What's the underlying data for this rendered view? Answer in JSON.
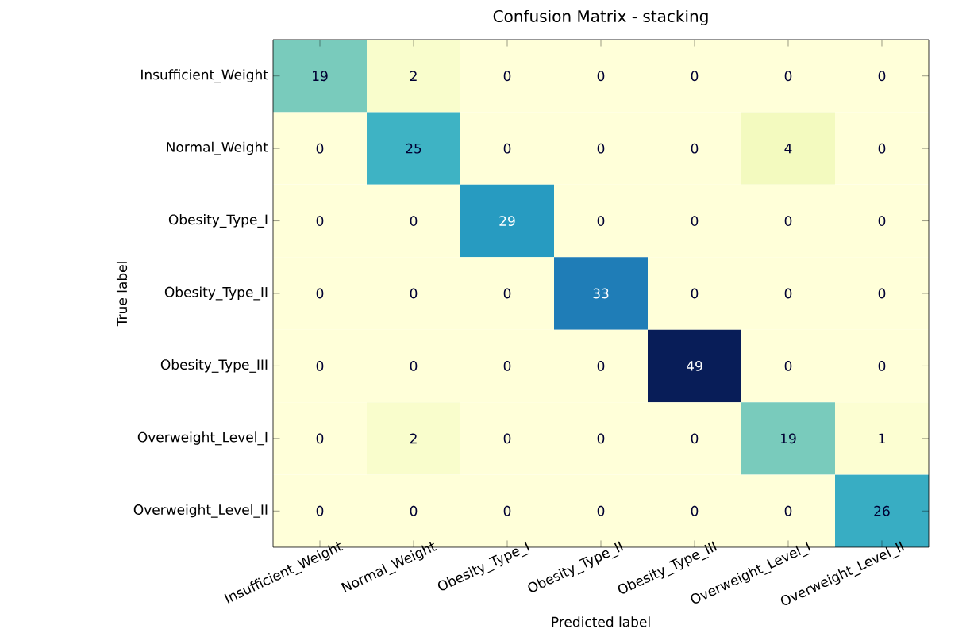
{
  "chart_data": {
    "type": "heatmap",
    "title": "Confusion Matrix - stacking",
    "xlabel": "Predicted label",
    "ylabel": "True label",
    "categories": [
      "Insufficient_Weight",
      "Normal_Weight",
      "Obesity_Type_I",
      "Obesity_Type_II",
      "Obesity_Type_III",
      "Overweight_Level_I",
      "Overweight_Level_II"
    ],
    "y_categories": [
      "Insufficient_Weight",
      "Normal_Weight",
      "Obesity_Type_I",
      "Obesity_Type_II",
      "Obesity_Type_III",
      "Overweight_Level_I",
      "Overweight_Level_II"
    ],
    "cells": [
      [
        19,
        2,
        0,
        0,
        0,
        0,
        0
      ],
      [
        0,
        25,
        0,
        0,
        0,
        4,
        0
      ],
      [
        0,
        0,
        29,
        0,
        0,
        0,
        0
      ],
      [
        0,
        0,
        0,
        33,
        0,
        0,
        0
      ],
      [
        0,
        0,
        0,
        0,
        49,
        0,
        0
      ],
      [
        0,
        2,
        0,
        0,
        0,
        19,
        1
      ],
      [
        0,
        0,
        0,
        0,
        0,
        0,
        26
      ]
    ],
    "data_labels": true
  }
}
